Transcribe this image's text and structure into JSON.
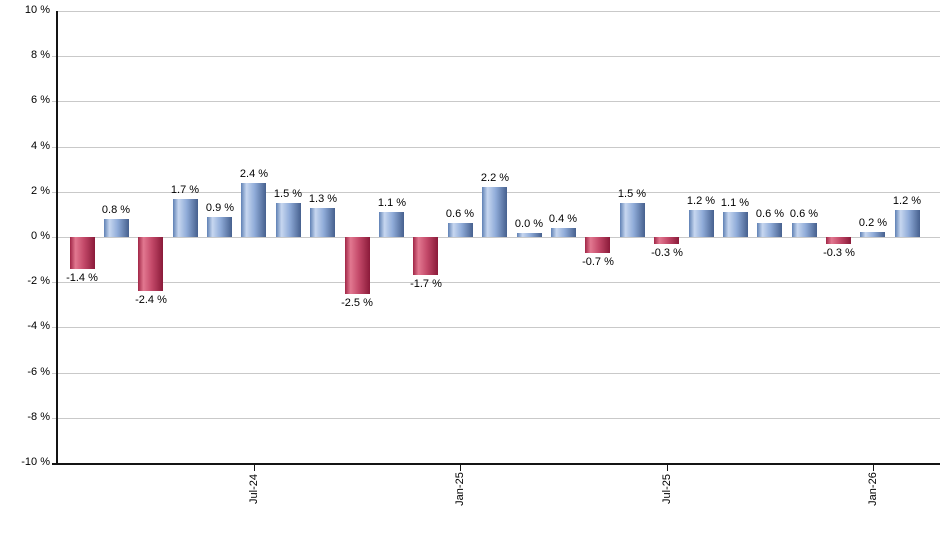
{
  "chart_data": {
    "type": "bar",
    "title": "",
    "values": [
      -1.4,
      0.8,
      -2.4,
      1.7,
      0.9,
      2.4,
      1.5,
      1.3,
      -2.5,
      1.1,
      -1.7,
      0.6,
      2.2,
      0.0,
      0.4,
      -0.7,
      1.5,
      -0.3,
      1.2,
      1.1,
      0.6,
      0.6,
      -0.3,
      0.2,
      1.2
    ],
    "bar_labels": [
      "-1.4 %",
      "0.8 %",
      "-2.4 %",
      "1.7 %",
      "0.9 %",
      "2.4 %",
      "1.5 %",
      "1.3 %",
      "-2.5 %",
      "1.1 %",
      "-1.7 %",
      "0.6 %",
      "2.2 %",
      "0.0 %",
      "0.4 %",
      "-0.7 %",
      "1.5 %",
      "-0.3 %",
      "1.2 %",
      "1.1 %",
      "0.6 %",
      "0.6 %",
      "-0.3 %",
      "0.2 %",
      "1.2 %"
    ],
    "x_tick_labels": [
      {
        "bar_index": 5,
        "label": "Jul-24"
      },
      {
        "bar_index": 11,
        "label": "Jan-25"
      },
      {
        "bar_index": 17,
        "label": "Jul-25"
      },
      {
        "bar_index": 23,
        "label": "Jan-26"
      }
    ],
    "y_ticks": [
      "10 %",
      "8 %",
      "6 %",
      "4 %",
      "2 %",
      "0 %",
      "-2 %",
      "-4 %",
      "-6 %",
      "-8 %",
      "-10 %"
    ],
    "y_tick_values": [
      10,
      8,
      6,
      4,
      2,
      0,
      -2,
      -4,
      -6,
      -8,
      -10
    ],
    "ylim": [
      -10,
      10
    ],
    "grid": "horizontal-only",
    "legend": "none",
    "colors": {
      "positive_bar_gradient": [
        "#5f80b4",
        "#c7d7f0",
        "#8fabd8",
        "#46608e"
      ],
      "negative_bar_gradient": [
        "#a02546",
        "#e27890",
        "#c44a6a",
        "#8a1a39"
      ],
      "gridline": "#c9c9c9",
      "axis": "#141414",
      "label_text": "#000000",
      "background": "#ffffff"
    }
  }
}
